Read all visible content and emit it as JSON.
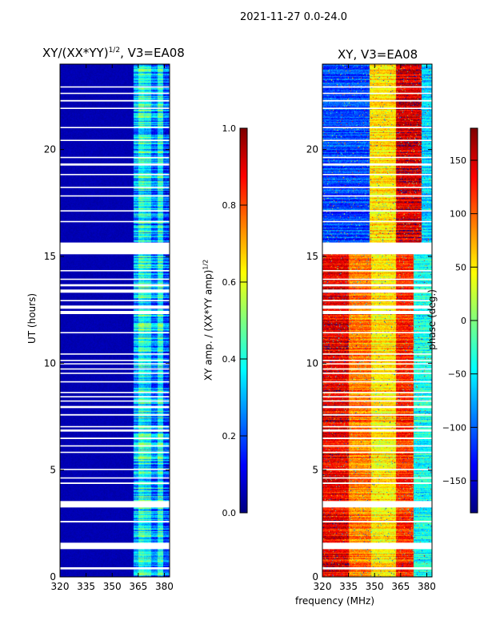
{
  "suptitle": "2021-11-27 0.0-24.0",
  "xlabel": "frequency (MHz)",
  "chart_data": [
    {
      "type": "heatmap",
      "title": "XY/(XX*YY)",
      "title_exponent": "1/2",
      "title_suffix": ", V3=EA08",
      "xlabel": "",
      "ylabel": "UT (hours)",
      "xlim": [
        320,
        383
      ],
      "ylim": [
        0,
        24
      ],
      "xticks": [
        "320",
        "335",
        "350",
        "365",
        "380"
      ],
      "xtick_values": [
        320,
        335,
        350,
        365,
        380
      ],
      "yticks": [
        "0",
        "5",
        "10",
        "15",
        "20"
      ],
      "ytick_values": [
        0,
        5,
        10,
        15,
        20
      ],
      "colorbar": {
        "label": "XY amp. / (XX*YY amp)",
        "label_exponent": "1/2",
        "range": [
          0,
          1
        ],
        "ticks": [
          "0.0",
          "0.2",
          "0.4",
          "0.6",
          "0.8",
          "1.0"
        ],
        "tick_values": [
          0,
          0.2,
          0.4,
          0.6,
          0.8,
          1.0
        ],
        "colormap": "jet"
      },
      "bands": [
        {
          "freq": [
            320,
            362
          ],
          "value": 0.05
        },
        {
          "freq": [
            362,
            365
          ],
          "value": 0.3
        },
        {
          "freq": [
            365,
            368
          ],
          "value": 0.42
        },
        {
          "freq": [
            368,
            372
          ],
          "value": 0.38
        },
        {
          "freq": [
            372,
            376
          ],
          "value": 0.25
        },
        {
          "freq": [
            376,
            379
          ],
          "value": 0.4
        },
        {
          "freq": [
            379,
            383
          ],
          "value": 0.2
        }
      ]
    },
    {
      "type": "heatmap",
      "title": "XY, V3=EA08",
      "xlabel": "",
      "ylabel": "",
      "xlim": [
        320,
        383
      ],
      "ylim": [
        0,
        24
      ],
      "xticks": [
        "320",
        "335",
        "350",
        "365",
        "380"
      ],
      "xtick_values": [
        320,
        335,
        350,
        365,
        380
      ],
      "yticks": [
        "0",
        "5",
        "10",
        "15",
        "20"
      ],
      "yticks_values": [
        0,
        5,
        10,
        15,
        20
      ],
      "colorbar": {
        "label": "phase (deg.)",
        "range": [
          -180,
          180
        ],
        "ticks": [
          "−150",
          "−100",
          "−50",
          "0",
          "50",
          "100",
          "150"
        ],
        "tick_values": [
          -150,
          -100,
          -50,
          0,
          50,
          100,
          150
        ],
        "colormap": "jet"
      },
      "segments": [
        {
          "time": [
            0,
            15.5
          ],
          "bands": [
            {
              "freq": [
                320,
                335
              ],
              "value": 140
            },
            {
              "freq": [
                335,
                348
              ],
              "value": 90
            },
            {
              "freq": [
                348,
                362
              ],
              "value": 50
            },
            {
              "freq": [
                362,
                372
              ],
              "value": 120
            },
            {
              "freq": [
                372,
                383
              ],
              "value": -40
            }
          ]
        },
        {
          "time": [
            15.5,
            24
          ],
          "bands": [
            {
              "freq": [
                320,
                347
              ],
              "value": -110
            },
            {
              "freq": [
                347,
                362
              ],
              "value": 55
            },
            {
              "freq": [
                362,
                377
              ],
              "value": 150
            },
            {
              "freq": [
                377,
                383
              ],
              "value": -60
            }
          ]
        }
      ]
    }
  ],
  "flagged_hours": [
    [
      0.35,
      0.45
    ],
    [
      1.3,
      1.6
    ],
    [
      2.55,
      2.62
    ],
    [
      3.25,
      3.55
    ],
    [
      4.35,
      4.42
    ],
    [
      4.6,
      4.66
    ],
    [
      5.0,
      5.06
    ],
    [
      5.8,
      5.86
    ],
    [
      6.1,
      6.16
    ],
    [
      6.45,
      6.52
    ],
    [
      6.8,
      6.9
    ],
    [
      7.0,
      7.06
    ],
    [
      7.55,
      7.62
    ],
    [
      7.9,
      8.0
    ],
    [
      8.2,
      8.26
    ],
    [
      8.4,
      8.46
    ],
    [
      8.6,
      8.66
    ],
    [
      9.1,
      9.16
    ],
    [
      9.5,
      9.56
    ],
    [
      9.7,
      9.76
    ],
    [
      9.95,
      10.0
    ],
    [
      10.1,
      10.16
    ],
    [
      10.4,
      10.46
    ],
    [
      11.4,
      11.46
    ],
    [
      12.3,
      12.45
    ],
    [
      12.55,
      12.7
    ],
    [
      12.9,
      12.96
    ],
    [
      13.3,
      13.45
    ],
    [
      13.6,
      13.7
    ],
    [
      13.9,
      13.96
    ],
    [
      14.3,
      14.36
    ],
    [
      15.1,
      15.65
    ],
    [
      16.6,
      16.66
    ],
    [
      17.1,
      17.16
    ],
    [
      17.8,
      17.86
    ],
    [
      18.2,
      18.26
    ],
    [
      18.8,
      18.86
    ],
    [
      19.25,
      19.35
    ],
    [
      19.6,
      19.66
    ],
    [
      20.4,
      20.46
    ],
    [
      21.0,
      21.06
    ],
    [
      21.9,
      21.96
    ],
    [
      22.25,
      22.32
    ],
    [
      22.6,
      22.66
    ],
    [
      22.9,
      22.96
    ]
  ]
}
